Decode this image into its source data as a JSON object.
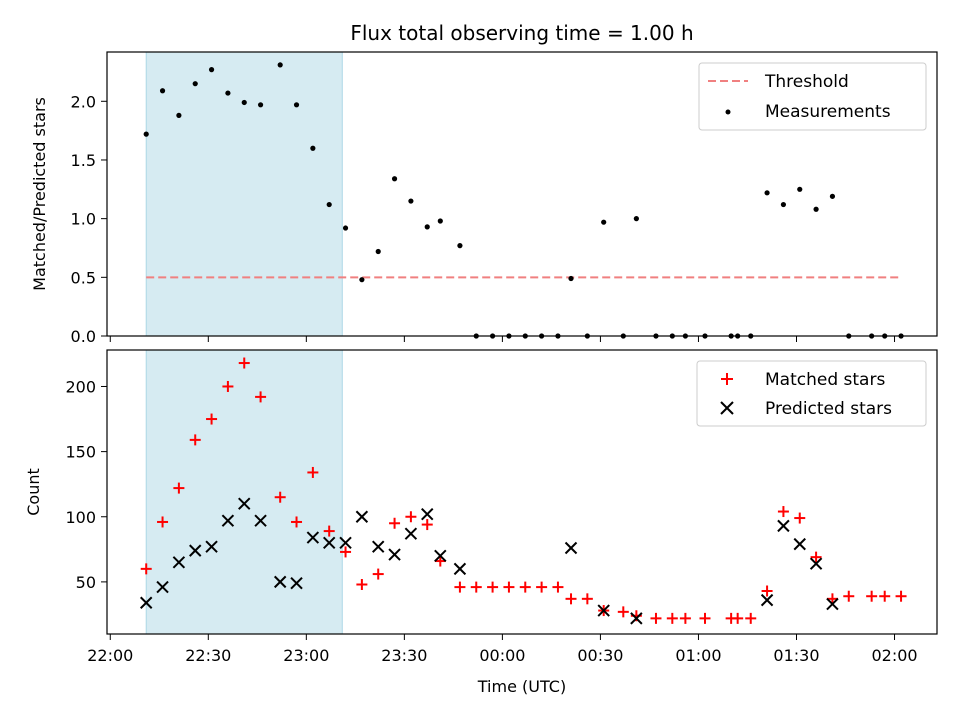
{
  "chart_data": [
    {
      "type": "scatter",
      "title": "Flux total observing time = 1.00 h",
      "ylabel": "Matched/Predicted stars",
      "ylim": [
        0,
        2.42
      ],
      "yticks": [
        0.0,
        0.5,
        1.0,
        1.5,
        2.0
      ],
      "ytick_labels": [
        "0.0",
        "0.5",
        "1.0",
        "1.5",
        "2.0"
      ],
      "shaded_interval": [
        "22:11",
        "23:11"
      ],
      "shade_color": "#add8e6",
      "legend_position": "top-right",
      "legend": [
        {
          "label": "Threshold",
          "marker": "dashed-line",
          "color": "#f08080"
        },
        {
          "label": "Measurements",
          "marker": "dot",
          "color": "#000000"
        }
      ],
      "threshold": {
        "name": "Threshold",
        "value": 0.5,
        "x_start": "22:11",
        "x_end": "02:02",
        "color": "#f08080"
      },
      "series": [
        {
          "name": "Measurements",
          "color": "#000000",
          "points": [
            [
              "22:11",
              1.72
            ],
            [
              "22:16",
              2.09
            ],
            [
              "22:21",
              1.88
            ],
            [
              "22:26",
              2.15
            ],
            [
              "22:31",
              2.27
            ],
            [
              "22:36",
              2.07
            ],
            [
              "22:41",
              1.99
            ],
            [
              "22:46",
              1.97
            ],
            [
              "22:52",
              2.31
            ],
            [
              "22:57",
              1.97
            ],
            [
              "23:02",
              1.6
            ],
            [
              "23:07",
              1.12
            ],
            [
              "23:12",
              0.92
            ],
            [
              "23:17",
              0.48
            ],
            [
              "23:22",
              0.72
            ],
            [
              "23:27",
              1.34
            ],
            [
              "23:32",
              1.15
            ],
            [
              "23:37",
              0.93
            ],
            [
              "23:41",
              0.98
            ],
            [
              "23:47",
              0.77
            ],
            [
              "23:52",
              0.0
            ],
            [
              "23:57",
              0.0
            ],
            [
              "00:02",
              0.0
            ],
            [
              "00:07",
              0.0
            ],
            [
              "00:12",
              0.0
            ],
            [
              "00:17",
              0.0
            ],
            [
              "00:21",
              0.49
            ],
            [
              "00:26",
              0.0
            ],
            [
              "00:31",
              0.97
            ],
            [
              "00:37",
              0.0
            ],
            [
              "00:41",
              1.0
            ],
            [
              "00:47",
              0.0
            ],
            [
              "00:52",
              0.0
            ],
            [
              "00:56",
              0.0
            ],
            [
              "01:02",
              0.0
            ],
            [
              "01:10",
              0.0
            ],
            [
              "01:12",
              0.0
            ],
            [
              "01:16",
              0.0
            ],
            [
              "01:21",
              1.22
            ],
            [
              "01:26",
              1.12
            ],
            [
              "01:31",
              1.25
            ],
            [
              "01:36",
              1.08
            ],
            [
              "01:41",
              1.19
            ],
            [
              "01:46",
              0.0
            ],
            [
              "01:53",
              0.0
            ],
            [
              "01:57",
              0.0
            ],
            [
              "02:02",
              0.0
            ]
          ]
        }
      ]
    },
    {
      "type": "scatter",
      "ylabel": "Count",
      "xlabel": "Time (UTC)",
      "xlim": [
        "21:59",
        "02:13"
      ],
      "xticks": [
        "22:00",
        "22:30",
        "23:00",
        "23:30",
        "00:00",
        "00:30",
        "01:00",
        "01:30",
        "02:00"
      ],
      "ylim": [
        10,
        228
      ],
      "yticks": [
        50,
        100,
        150,
        200
      ],
      "ytick_labels": [
        "50",
        "100",
        "150",
        "200"
      ],
      "shaded_interval": [
        "22:11",
        "23:11"
      ],
      "shade_color": "#add8e6",
      "legend_position": "top-right",
      "legend": [
        {
          "label": "Matched stars",
          "marker": "plus",
          "color": "#ff0000"
        },
        {
          "label": "Predicted stars",
          "marker": "x",
          "color": "#000000"
        }
      ],
      "series": [
        {
          "name": "Matched stars",
          "marker": "plus",
          "color": "#ff0000",
          "points": [
            [
              "22:11",
              60
            ],
            [
              "22:16",
              96
            ],
            [
              "22:21",
              122
            ],
            [
              "22:26",
              159
            ],
            [
              "22:31",
              175
            ],
            [
              "22:36",
              200
            ],
            [
              "22:41",
              218
            ],
            [
              "22:46",
              192
            ],
            [
              "22:52",
              115
            ],
            [
              "22:57",
              96
            ],
            [
              "23:02",
              134
            ],
            [
              "23:07",
              89
            ],
            [
              "23:12",
              73
            ],
            [
              "23:17",
              48
            ],
            [
              "23:22",
              56
            ],
            [
              "23:27",
              95
            ],
            [
              "23:32",
              100
            ],
            [
              "23:37",
              94
            ],
            [
              "23:41",
              66
            ],
            [
              "23:47",
              46
            ],
            [
              "23:52",
              46
            ],
            [
              "23:57",
              46
            ],
            [
              "00:02",
              46
            ],
            [
              "00:07",
              46
            ],
            [
              "00:12",
              46
            ],
            [
              "00:17",
              46
            ],
            [
              "00:21",
              37
            ],
            [
              "00:26",
              37
            ],
            [
              "00:31",
              28
            ],
            [
              "00:37",
              27
            ],
            [
              "00:41",
              24
            ],
            [
              "00:47",
              22
            ],
            [
              "00:52",
              22
            ],
            [
              "00:56",
              22
            ],
            [
              "01:02",
              22
            ],
            [
              "01:10",
              22
            ],
            [
              "01:12",
              22
            ],
            [
              "01:16",
              22
            ],
            [
              "01:21",
              43
            ],
            [
              "01:26",
              104
            ],
            [
              "01:31",
              99
            ],
            [
              "01:36",
              69
            ],
            [
              "01:41",
              37
            ],
            [
              "01:46",
              39
            ],
            [
              "01:53",
              39
            ],
            [
              "01:57",
              39
            ],
            [
              "02:02",
              39
            ]
          ]
        },
        {
          "name": "Predicted stars",
          "marker": "x",
          "color": "#000000",
          "points": [
            [
              "22:11",
              34
            ],
            [
              "22:16",
              46
            ],
            [
              "22:21",
              65
            ],
            [
              "22:26",
              74
            ],
            [
              "22:31",
              77
            ],
            [
              "22:36",
              97
            ],
            [
              "22:41",
              110
            ],
            [
              "22:46",
              97
            ],
            [
              "22:52",
              50
            ],
            [
              "22:57",
              49
            ],
            [
              "23:02",
              84
            ],
            [
              "23:07",
              80
            ],
            [
              "23:12",
              80
            ],
            [
              "23:17",
              100
            ],
            [
              "23:22",
              77
            ],
            [
              "23:27",
              71
            ],
            [
              "23:32",
              87
            ],
            [
              "23:37",
              102
            ],
            [
              "23:41",
              70
            ],
            [
              "23:47",
              60
            ],
            [
              "00:21",
              76
            ],
            [
              "00:31",
              28
            ],
            [
              "00:41",
              22
            ],
            [
              "01:21",
              36
            ],
            [
              "01:26",
              93
            ],
            [
              "01:31",
              79
            ],
            [
              "01:36",
              64
            ],
            [
              "01:41",
              33
            ]
          ]
        }
      ]
    }
  ]
}
